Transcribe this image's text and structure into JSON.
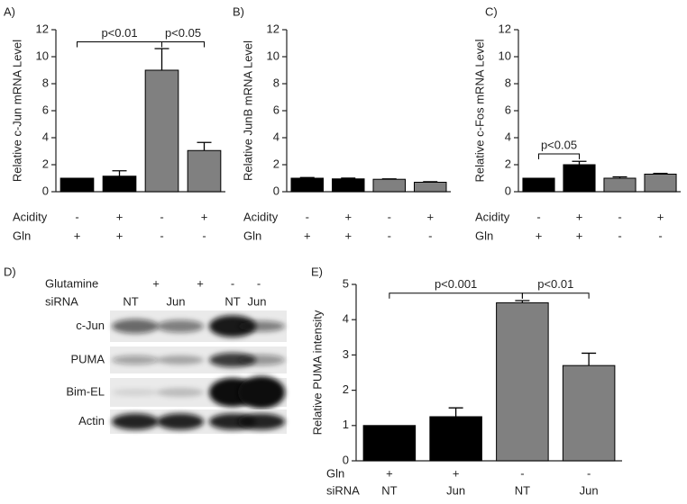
{
  "chart_data": [
    {
      "type": "bar",
      "panel": "A)",
      "ylabel": "Relative c-Jun mRNA Level",
      "values": [
        1.0,
        1.15,
        9.0,
        3.05
      ],
      "errors": [
        0.0,
        0.4,
        1.6,
        0.6
      ],
      "colors": [
        "#000000",
        "#000000",
        "#808080",
        "#808080"
      ],
      "ylim": [
        0,
        12
      ],
      "yticks": [
        0,
        2,
        4,
        6,
        8,
        10,
        12
      ],
      "rows": [
        {
          "label": "Acidity",
          "values": [
            "-",
            "+",
            "-",
            "+"
          ]
        },
        {
          "label": "Gln",
          "values": [
            "+",
            "+",
            "-",
            "-"
          ]
        }
      ],
      "annotations": [
        {
          "text": "p<0.01",
          "between": [
            0,
            2
          ],
          "y": 11.1
        },
        {
          "text": "p<0.05",
          "between": [
            2,
            3
          ],
          "y": 11.1
        }
      ]
    },
    {
      "type": "bar",
      "panel": "B)",
      "ylabel": "Relative JunB mRNA Level",
      "values": [
        1.0,
        0.95,
        0.92,
        0.7
      ],
      "errors": [
        0.05,
        0.06,
        0.03,
        0.04
      ],
      "colors": [
        "#000000",
        "#000000",
        "#808080",
        "#808080"
      ],
      "ylim": [
        0,
        12
      ],
      "yticks": [
        0,
        2,
        4,
        6,
        8,
        10,
        12
      ],
      "rows": [
        {
          "label": "Acidity",
          "values": [
            "-",
            "+",
            "-",
            "+"
          ]
        },
        {
          "label": "Gln",
          "values": [
            "+",
            "+",
            "-",
            "-"
          ]
        }
      ],
      "annotations": []
    },
    {
      "type": "bar",
      "panel": "C)",
      "ylabel": "Relative c-Fos mRNA Level",
      "values": [
        1.0,
        2.0,
        1.0,
        1.3
      ],
      "errors": [
        0.0,
        0.25,
        0.1,
        0.06
      ],
      "colors": [
        "#000000",
        "#000000",
        "#808080",
        "#808080"
      ],
      "ylim": [
        0,
        12
      ],
      "yticks": [
        0,
        2,
        4,
        6,
        8,
        10,
        12
      ],
      "rows": [
        {
          "label": "Acidity",
          "values": [
            "-",
            "+",
            "-",
            "+"
          ]
        },
        {
          "label": "Gln",
          "values": [
            "+",
            "+",
            "-",
            "-"
          ]
        }
      ],
      "annotations": [
        {
          "text": "p<0.05",
          "between": [
            0,
            1
          ],
          "y": 2.8
        }
      ]
    },
    {
      "type": "bar",
      "panel": "E)",
      "ylabel": "Relative PUMA intensity",
      "values": [
        1.0,
        1.25,
        4.48,
        2.7
      ],
      "errors": [
        0.0,
        0.25,
        0.06,
        0.35
      ],
      "colors": [
        "#000000",
        "#000000",
        "#808080",
        "#808080"
      ],
      "ylim": [
        0,
        5
      ],
      "yticks": [
        0,
        1,
        2,
        3,
        4,
        5
      ],
      "rows": [
        {
          "label": "Gln",
          "values": [
            "+",
            "+",
            "-",
            "-"
          ]
        },
        {
          "label": "siRNA",
          "values": [
            "NT",
            "Jun",
            "NT",
            "Jun"
          ]
        }
      ],
      "annotations": [
        {
          "text": "p<0.001",
          "between": [
            0,
            2
          ],
          "y": 4.75
        },
        {
          "text": "p<0.01",
          "between": [
            2,
            3
          ],
          "y": 4.75
        }
      ]
    }
  ],
  "blot": {
    "panel": "D)",
    "header": [
      {
        "label": "Glutamine",
        "values": [
          "+",
          "+",
          "-",
          "-"
        ]
      },
      {
        "label": "siRNA",
        "values": [
          "NT",
          "Jun",
          "NT",
          "Jun"
        ]
      }
    ],
    "bands": [
      "c-Jun",
      "PUMA",
      "Bim-EL",
      "Actin"
    ]
  }
}
